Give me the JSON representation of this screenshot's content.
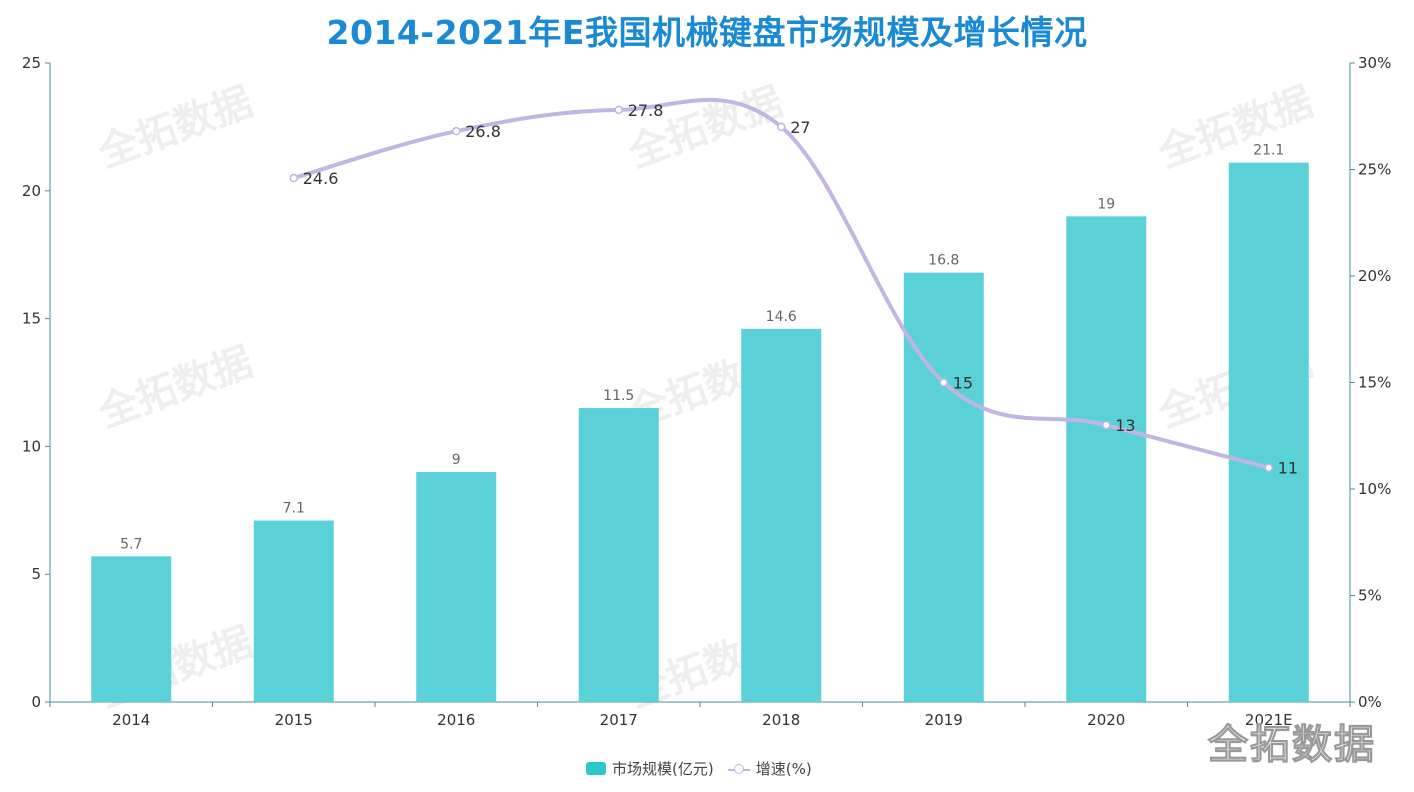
{
  "chart_data": {
    "type": "bar+line",
    "title": "2014-2021年E我国机械键盘市场规模及增长情况",
    "categories": [
      "2014",
      "2015",
      "2016",
      "2017",
      "2018",
      "2019",
      "2020",
      "2021E"
    ],
    "series": [
      {
        "name": "市场规模(亿元)",
        "type": "bar",
        "axis": "left",
        "values": [
          5.7,
          7.1,
          9,
          11.5,
          14.6,
          16.8,
          19,
          21.1
        ],
        "labels": [
          "5.7",
          "7.1",
          "9",
          "11.5",
          "14.6",
          "16.8",
          "19",
          "21.1"
        ],
        "color": "#5ad1d6"
      },
      {
        "name": "增速(%)",
        "type": "line",
        "smooth": true,
        "axis": "right",
        "values": [
          null,
          24.6,
          26.8,
          27.8,
          27,
          15,
          13,
          11
        ],
        "labels": [
          "",
          "24.6",
          "26.8",
          "27.8",
          "27",
          "15",
          "13",
          "11"
        ],
        "color": "#c3b5e3"
      }
    ],
    "y_left": {
      "ylim": [
        0,
        25
      ],
      "ticks": [
        "0",
        "5",
        "10",
        "15",
        "20",
        "25"
      ]
    },
    "y_right": {
      "ylim": [
        0,
        30
      ],
      "ticks": [
        "0%",
        "5%",
        "10%",
        "15%",
        "20%",
        "25%",
        "30%"
      ]
    },
    "grid": false,
    "legend": "bottom"
  },
  "watermark": "全拓数据"
}
